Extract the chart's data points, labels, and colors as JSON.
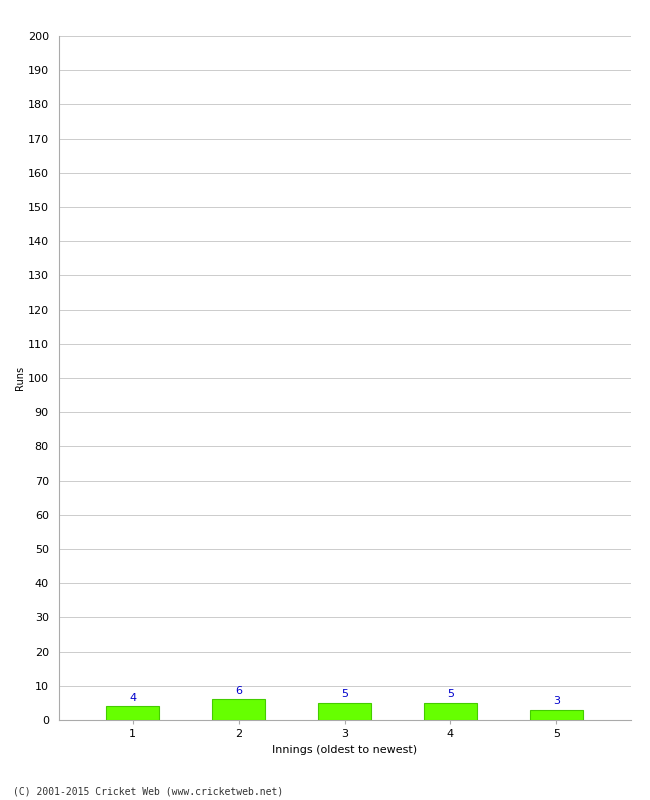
{
  "xlabel": "Innings (oldest to newest)",
  "ylabel": "Runs",
  "categories": [
    "1",
    "2",
    "3",
    "4",
    "5"
  ],
  "values": [
    4,
    6,
    5,
    5,
    3
  ],
  "bar_color": "#66ff00",
  "bar_edge_color": "#44cc00",
  "label_color": "#0000cc",
  "ylim": [
    0,
    200
  ],
  "yticks": [
    0,
    10,
    20,
    30,
    40,
    50,
    60,
    70,
    80,
    90,
    100,
    110,
    120,
    130,
    140,
    150,
    160,
    170,
    180,
    190,
    200
  ],
  "background_color": "#ffffff",
  "grid_color": "#cccccc",
  "footer": "(C) 2001-2015 Cricket Web (www.cricketweb.net)",
  "bar_width": 0.5,
  "label_fontsize": 8,
  "axis_fontsize": 8,
  "ylabel_fontsize": 7,
  "footer_fontsize": 7
}
